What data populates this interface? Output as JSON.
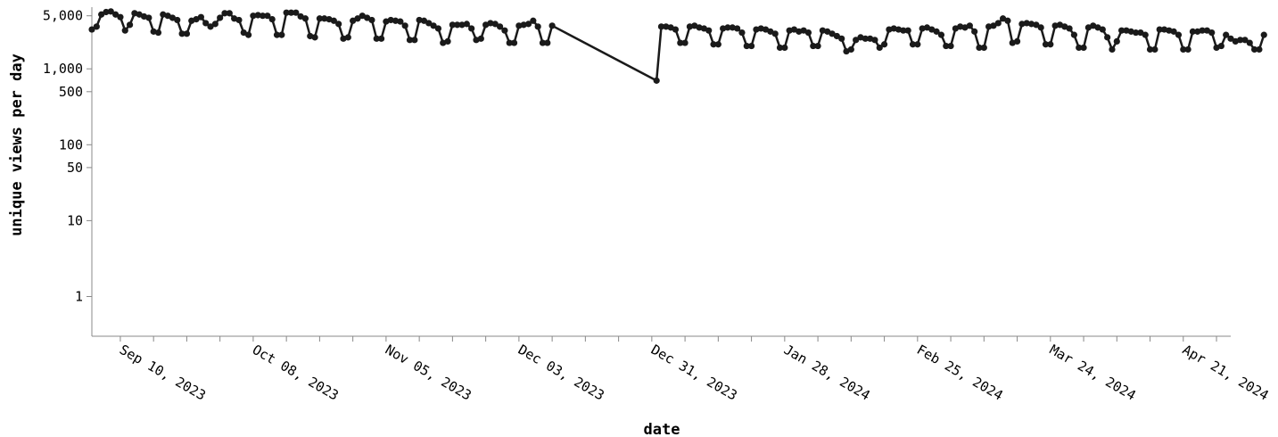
{
  "chart_data": {
    "type": "line",
    "xlabel": "date",
    "ylabel": "unique views per day",
    "x_scale": "time",
    "y_scale": "log",
    "xlim": [
      "2023-09-04",
      "2024-05-01"
    ],
    "ylim": [
      0.3,
      6500
    ],
    "y_ticks": [
      {
        "value": 1,
        "label": "1"
      },
      {
        "value": 10,
        "label": "10"
      },
      {
        "value": 50,
        "label": "50"
      },
      {
        "value": 100,
        "label": "100"
      },
      {
        "value": 500,
        "label": "500"
      },
      {
        "value": 1000,
        "label": "1,000"
      },
      {
        "value": 5000,
        "label": "5,000"
      }
    ],
    "x_major_ticks": [
      {
        "date": "2023-09-10",
        "label": "Sep 10, 2023"
      },
      {
        "date": "2023-10-08",
        "label": "Oct 08, 2023"
      },
      {
        "date": "2023-11-05",
        "label": "Nov 05, 2023"
      },
      {
        "date": "2023-12-03",
        "label": "Dec 03, 2023"
      },
      {
        "date": "2023-12-31",
        "label": "Dec 31, 2023"
      },
      {
        "date": "2024-01-28",
        "label": "Jan 28, 2024"
      },
      {
        "date": "2024-02-25",
        "label": "Feb 25, 2024"
      },
      {
        "date": "2024-03-24",
        "label": "Mar 24, 2024"
      },
      {
        "date": "2024-04-21",
        "label": "Apr 21, 2024"
      }
    ],
    "x_minor_tick_interval": "7 days",
    "series": [
      {
        "color": "#1a1a1a",
        "segments": [
          {
            "start": "2023-09-04",
            "values": [
              3300,
              3600,
              5200,
              5600,
              5700,
              5200,
              4800,
              3200,
              3800,
              5400,
              5200,
              4900,
              4700,
              3100,
              3000,
              5200,
              5000,
              4700,
              4400,
              2900,
              2900,
              4300,
              4500,
              4800,
              4000,
              3600,
              3900,
              4700,
              5400,
              5400,
              4600,
              4400,
              3000,
              2800,
              5000,
              5100,
              5000,
              5000,
              4500,
              2800,
              2800,
              5500,
              5500,
              5500,
              4900,
              4600,
              2700,
              2600,
              4600,
              4600,
              4500,
              4300,
              3900,
              2500,
              2600,
              4300,
              4600,
              5000,
              4700,
              4400,
              2500,
              2500,
              4200,
              4400,
              4300,
              4200,
              3700,
              2400,
              2400,
              4400,
              4300,
              4000,
              3700,
              3400,
              2200,
              2300,
              3800,
              3800,
              3800,
              3900,
              3400,
              2400,
              2500,
              3800,
              4000,
              3900,
              3600,
              3200,
              2200,
              2200,
              3700,
              3800,
              3900,
              4300,
              3600,
              2200,
              2200,
              3700
            ]
          },
          {
            "start": "2024-01-01",
            "values": [
              700,
              3600,
              3600,
              3500,
              3300,
              2200,
              2200,
              3600,
              3700,
              3500,
              3400,
              3200,
              2100,
              2100,
              3400,
              3500,
              3500,
              3400,
              3000,
              2000,
              2000,
              3300,
              3400,
              3300,
              3100,
              2900,
              1900,
              1900,
              3200,
              3300,
              3100,
              3200,
              3000,
              2000,
              2000,
              3200,
              3100,
              2900,
              2700,
              2500,
              1700,
              1800,
              2400,
              2600,
              2500,
              2500,
              2400,
              1900,
              2100,
              3300,
              3400,
              3300,
              3200,
              3200,
              2100,
              2100,
              3400,
              3500,
              3300,
              3100,
              2800,
              2000,
              2000,
              3400,
              3600,
              3500,
              3700,
              3100,
              1900,
              1900,
              3600,
              3700,
              4000,
              4600,
              4300,
              2200,
              2300,
              3900,
              4000,
              3900,
              3800,
              3500,
              2100,
              2100,
              3700,
              3800,
              3600,
              3400,
              2800,
              1900,
              1900,
              3500,
              3700,
              3500,
              3300,
              2600,
              1800,
              2300,
              3200,
              3200,
              3100,
              3000,
              3000,
              2800,
              1800,
              1800,
              3300,
              3300,
              3200,
              3100,
              2800,
              1800,
              1800,
              3100,
              3100,
              3200,
              3200,
              3000,
              1900,
              2000,
              2800,
              2500,
              2300,
              2400,
              2400,
              2200,
              1800,
              1800,
              2800
            ]
          }
        ]
      }
    ]
  }
}
